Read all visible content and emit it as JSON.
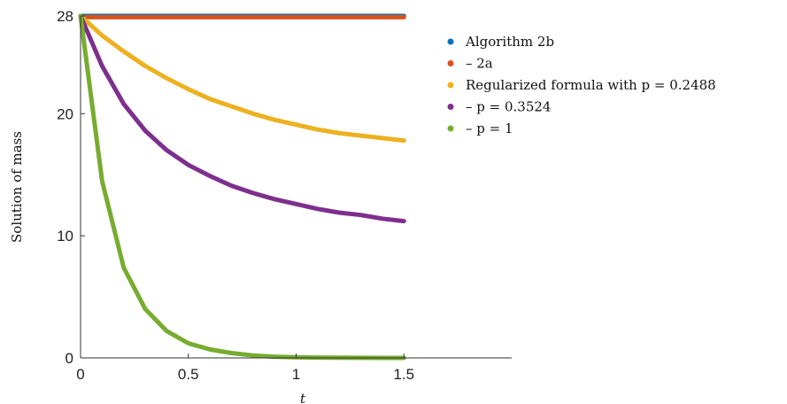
{
  "chart_data": {
    "type": "line",
    "xlabel": "t",
    "ylabel": "Solution of mass",
    "xlim": [
      0,
      2
    ],
    "ylim": [
      0,
      28
    ],
    "xticks": [
      0,
      0.5,
      1,
      1.5
    ],
    "yticks": [
      0,
      10,
      20,
      28
    ],
    "x_tick_labels": [
      "0",
      "0.5",
      "1",
      "1.5"
    ],
    "y_tick_labels": [
      "0",
      "10",
      "20",
      "28"
    ],
    "grid": false,
    "legend_position": "top-right outside",
    "x": [
      0,
      0.1,
      0.2,
      0.3,
      0.4,
      0.5,
      0.6,
      0.7,
      0.8,
      0.9,
      1.0,
      1.1,
      1.2,
      1.3,
      1.4,
      1.5
    ],
    "series": [
      {
        "name": "Algorithm 2b",
        "color": "#0072BD",
        "values": [
          28.0,
          28.0,
          28.0,
          28.0,
          28.0,
          28.0,
          28.0,
          28.0,
          28.0,
          28.0,
          28.0,
          28.0,
          28.0,
          28.0,
          28.0,
          28.0
        ]
      },
      {
        "name": "– 2a",
        "color": "#D95319",
        "values": [
          27.9,
          27.9,
          27.9,
          27.9,
          27.9,
          27.9,
          27.9,
          27.9,
          27.9,
          27.9,
          27.9,
          27.9,
          27.9,
          27.9,
          27.9,
          27.9
        ]
      },
      {
        "name": "Regularized formula with p = 0.2488",
        "color": "#EDB120",
        "values": [
          28.0,
          26.4,
          25.1,
          23.9,
          22.9,
          22.0,
          21.2,
          20.6,
          20.0,
          19.5,
          19.1,
          18.7,
          18.4,
          18.2,
          18.0,
          17.8
        ]
      },
      {
        "name": "– p = 0.3524",
        "color": "#7E2F8E",
        "values": [
          28.0,
          23.9,
          20.8,
          18.6,
          17.0,
          15.8,
          14.9,
          14.1,
          13.5,
          13.0,
          12.6,
          12.2,
          11.9,
          11.7,
          11.4,
          11.2
        ]
      },
      {
        "name": "– p = 1",
        "color": "#77AC30",
        "values": [
          28.0,
          14.5,
          7.4,
          4.0,
          2.2,
          1.2,
          0.7,
          0.4,
          0.2,
          0.1,
          0.06,
          0.03,
          0.02,
          0.01,
          0.0,
          0.0
        ]
      }
    ]
  }
}
